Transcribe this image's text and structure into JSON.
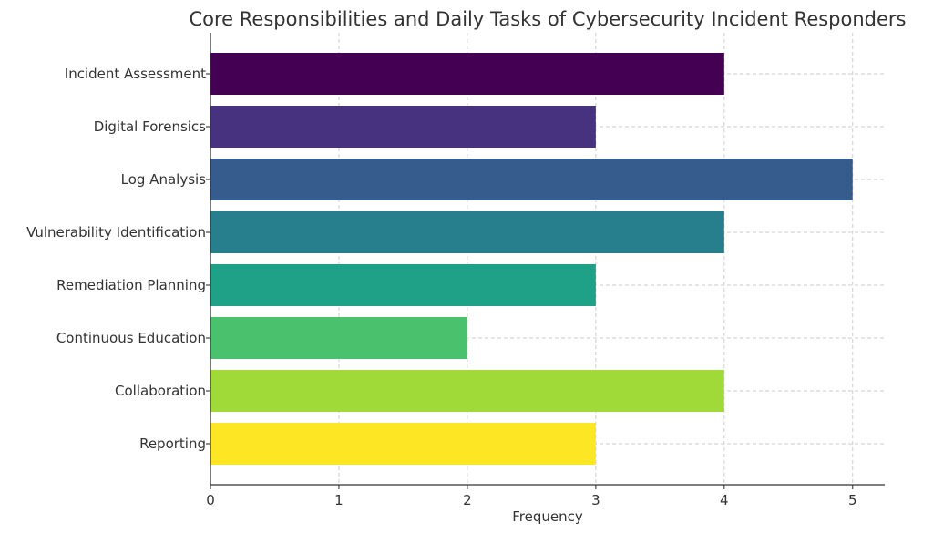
{
  "chart_data": {
    "type": "bar",
    "orientation": "horizontal",
    "title": "Core Responsibilities and Daily Tasks of Cybersecurity Incident Responders",
    "xlabel": "Frequency",
    "ylabel": "",
    "categories": [
      "Incident Assessment",
      "Digital Forensics",
      "Log Analysis",
      "Vulnerability Identification",
      "Remediation Planning",
      "Continuous Education",
      "Collaboration",
      "Reporting"
    ],
    "values": [
      4,
      3,
      5,
      4,
      3,
      2,
      4,
      3
    ],
    "colors": [
      "#440154",
      "#46327e",
      "#365c8d",
      "#277f8e",
      "#1fa187",
      "#4ac16d",
      "#a0da39",
      "#fde725"
    ],
    "xlim": [
      0,
      5.25
    ],
    "xticks": [
      0,
      1,
      2,
      3,
      4,
      5
    ],
    "grid": true
  }
}
